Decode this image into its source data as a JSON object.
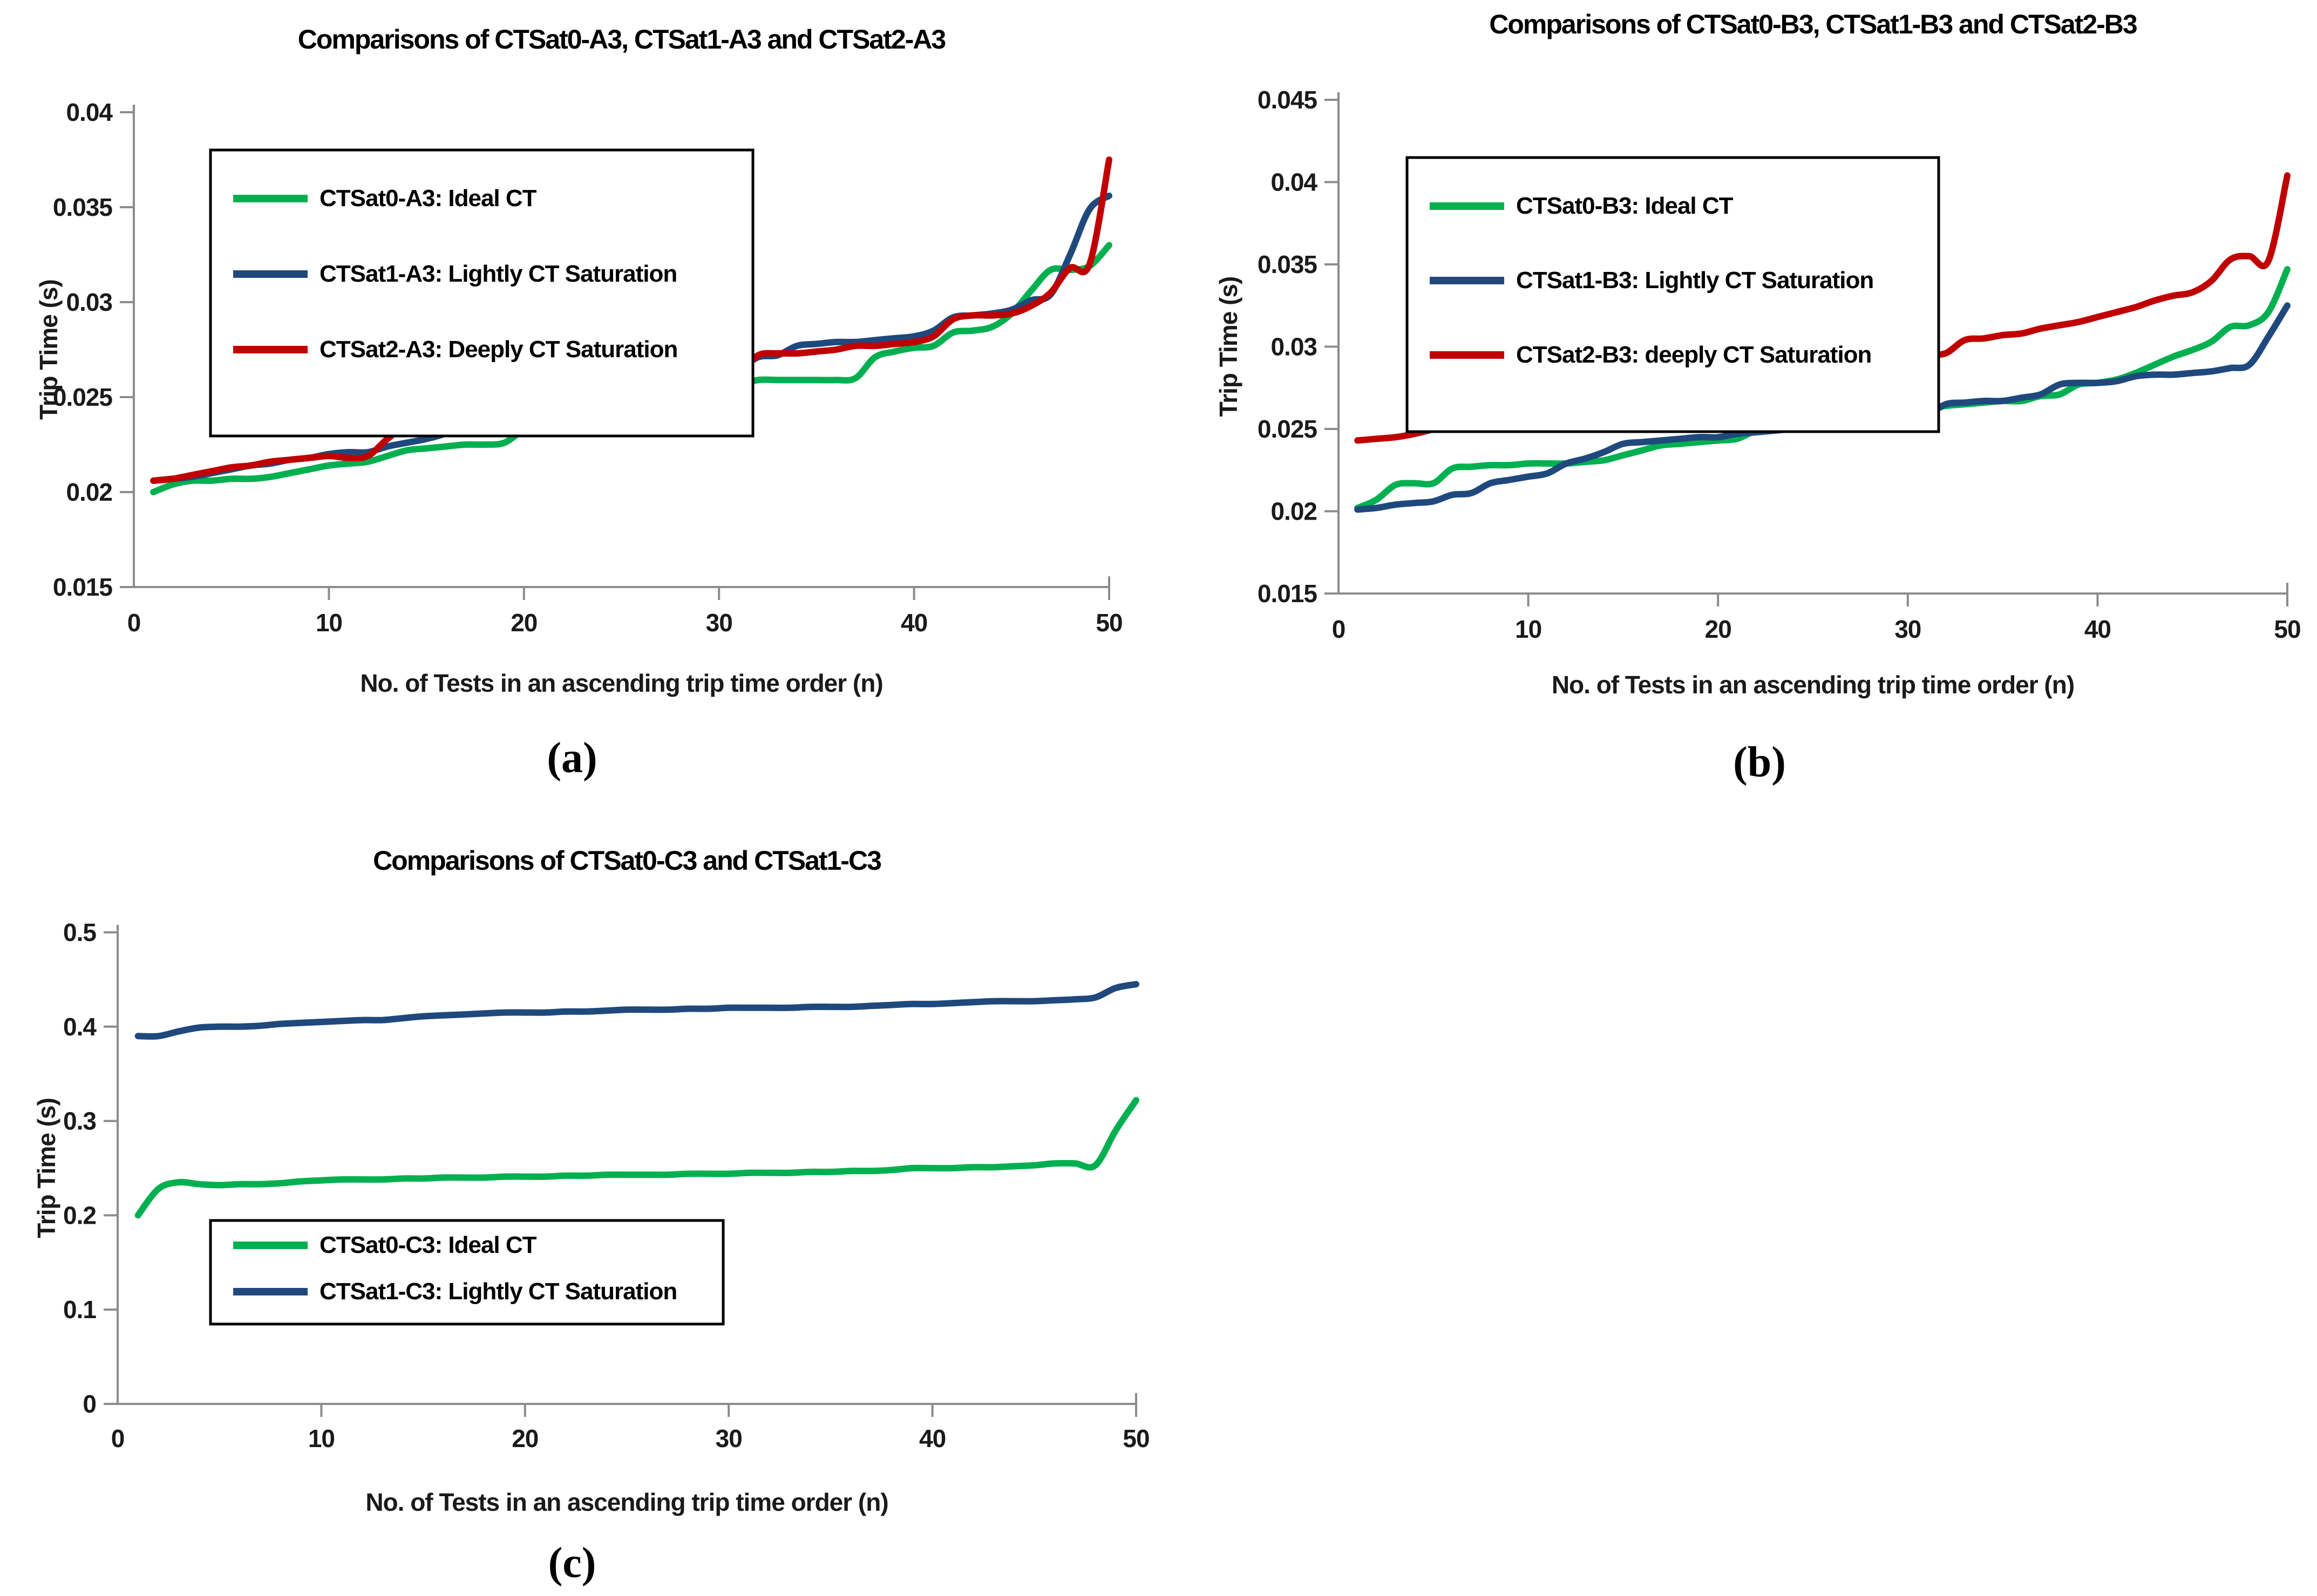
{
  "figure": {
    "captions": {
      "a": "(a)",
      "b": "(b)",
      "c": "(c)"
    }
  },
  "style": {
    "axis_color": "#8c8c8c",
    "tick_text_color": "#1a1a1a",
    "title_color": "#000000",
    "legend_border_color": "#000000",
    "ideal_green": "#00B050",
    "lightly_blue": "#1F497D",
    "deeply_red": "#C00000"
  },
  "chart_data": [
    {
      "id": "a",
      "type": "line",
      "title": "Comparisons of CTSat0-A3, CTSat1-A3 and CTSat2-A3",
      "xlabel": "No. of Tests in an ascending trip time order (n)",
      "ylabel": "Trip Time (s)",
      "xlim": [
        0,
        50
      ],
      "ylim": [
        0.015,
        0.04
      ],
      "x_range": [
        1,
        50
      ],
      "xtick_values": [
        0,
        10,
        20,
        30,
        40,
        50
      ],
      "xtick_labels": [
        "0",
        "10",
        "20",
        "30",
        "40",
        "50"
      ],
      "ytick_values": [
        0.015,
        0.02,
        0.025,
        0.03,
        0.035,
        0.04
      ],
      "ytick_labels": [
        "0.015",
        "0.02",
        "0.025",
        "0.03",
        "0.035",
        "0.04"
      ],
      "grid": false,
      "legend_position": "upper-left-inside",
      "series": [
        {
          "name": "CTSat0-A3: Ideal CT",
          "color": "#00B050",
          "values": [
            0.02,
            0.0204,
            0.0206,
            0.0206,
            0.0207,
            0.0207,
            0.0208,
            0.021,
            0.0212,
            0.0214,
            0.0215,
            0.0216,
            0.0219,
            0.0222,
            0.0223,
            0.0224,
            0.0225,
            0.0225,
            0.0226,
            0.0233,
            0.0238,
            0.0238,
            0.0239,
            0.024,
            0.0243,
            0.0249,
            0.025,
            0.0251,
            0.0251,
            0.0252,
            0.0256,
            0.0259,
            0.0259,
            0.0259,
            0.0259,
            0.0259,
            0.026,
            0.0271,
            0.0274,
            0.0276,
            0.0277,
            0.0284,
            0.0285,
            0.0287,
            0.0294,
            0.0306,
            0.0317,
            0.0317,
            0.0319,
            0.033
          ]
        },
        {
          "name": "CTSat1-A3: Lightly CT Saturation",
          "color": "#1F497D",
          "values": [
            0.0206,
            0.0207,
            0.0208,
            0.021,
            0.0212,
            0.0214,
            0.0215,
            0.0217,
            0.0218,
            0.022,
            0.0221,
            0.0221,
            0.0224,
            0.0226,
            0.0228,
            0.0231,
            0.0237,
            0.0239,
            0.024,
            0.0241,
            0.0242,
            0.0244,
            0.0246,
            0.0249,
            0.025,
            0.0251,
            0.0251,
            0.0251,
            0.0252,
            0.0258,
            0.0264,
            0.0271,
            0.0272,
            0.0277,
            0.0278,
            0.0279,
            0.0279,
            0.028,
            0.0281,
            0.0282,
            0.0285,
            0.0292,
            0.0293,
            0.0294,
            0.0296,
            0.0301,
            0.0304,
            0.0325,
            0.0349,
            0.0356
          ]
        },
        {
          "name": "CTSat2-A3: Deeply CT Saturation",
          "color": "#C00000",
          "values": [
            0.0206,
            0.0207,
            0.0209,
            0.0211,
            0.0213,
            0.0214,
            0.0216,
            0.0217,
            0.0218,
            0.0219,
            0.0218,
            0.0219,
            0.0228,
            0.0235,
            0.0236,
            0.0237,
            0.0238,
            0.024,
            0.0242,
            0.0243,
            0.0245,
            0.0246,
            0.0247,
            0.0249,
            0.025,
            0.025,
            0.0253,
            0.0258,
            0.0261,
            0.0262,
            0.0262,
            0.0272,
            0.0273,
            0.0273,
            0.0274,
            0.0275,
            0.0277,
            0.0277,
            0.0278,
            0.0279,
            0.0282,
            0.0291,
            0.0293,
            0.0293,
            0.0294,
            0.0298,
            0.0305,
            0.0318,
            0.032,
            0.0375
          ]
        }
      ]
    },
    {
      "id": "b",
      "type": "line",
      "title": "Comparisons of CTSat0-B3, CTSat1-B3 and CTSat2-B3",
      "xlabel": "No. of Tests in an ascending trip time order (n)",
      "ylabel": "Trip Time (s)",
      "xlim": [
        0,
        50
      ],
      "ylim": [
        0.015,
        0.045
      ],
      "x_range": [
        1,
        50
      ],
      "xtick_values": [
        0,
        10,
        20,
        30,
        40,
        50
      ],
      "xtick_labels": [
        "0",
        "10",
        "20",
        "30",
        "40",
        "50"
      ],
      "ytick_values": [
        0.015,
        0.02,
        0.025,
        0.03,
        0.035,
        0.04,
        0.045
      ],
      "ytick_labels": [
        "0.015",
        "0.02",
        "0.025",
        "0.03",
        "0.035",
        "0.04",
        "0.045"
      ],
      "grid": false,
      "legend_position": "upper-left-inside",
      "series": [
        {
          "name": "CTSat0-B3: Ideal CT",
          "color": "#00B050",
          "values": [
            0.0202,
            0.0207,
            0.0216,
            0.0217,
            0.0217,
            0.0226,
            0.0227,
            0.0228,
            0.0228,
            0.0229,
            0.0229,
            0.0229,
            0.023,
            0.0231,
            0.0234,
            0.0237,
            0.024,
            0.0241,
            0.0242,
            0.0243,
            0.0244,
            0.0249,
            0.0251,
            0.0254,
            0.0255,
            0.0256,
            0.0257,
            0.0259,
            0.0261,
            0.0262,
            0.0262,
            0.0264,
            0.0265,
            0.0266,
            0.0267,
            0.0267,
            0.027,
            0.0271,
            0.0277,
            0.0278,
            0.028,
            0.0284,
            0.0289,
            0.0294,
            0.0298,
            0.0303,
            0.0312,
            0.0313,
            0.0321,
            0.0347
          ]
        },
        {
          "name": "CTSat1-B3: Lightly CT Saturation",
          "color": "#1F497D",
          "values": [
            0.0201,
            0.0202,
            0.0204,
            0.0205,
            0.0206,
            0.021,
            0.0211,
            0.0217,
            0.0219,
            0.0221,
            0.0223,
            0.0229,
            0.0232,
            0.0236,
            0.0241,
            0.0242,
            0.0243,
            0.0244,
            0.0245,
            0.0245,
            0.0247,
            0.0248,
            0.0249,
            0.025,
            0.025,
            0.0251,
            0.0252,
            0.0253,
            0.0254,
            0.0255,
            0.0258,
            0.0265,
            0.0266,
            0.0267,
            0.0267,
            0.0269,
            0.0271,
            0.0277,
            0.0278,
            0.0278,
            0.0279,
            0.0282,
            0.0283,
            0.0283,
            0.0284,
            0.0285,
            0.0287,
            0.0289,
            0.0306,
            0.0325
          ]
        },
        {
          "name": "CTSat2-B3: deeply CT Saturation",
          "color": "#C00000",
          "values": [
            0.0243,
            0.0244,
            0.0245,
            0.0247,
            0.025,
            0.0255,
            0.026,
            0.026,
            0.0261,
            0.0266,
            0.0267,
            0.0268,
            0.0275,
            0.0276,
            0.0277,
            0.0277,
            0.0277,
            0.0278,
            0.0278,
            0.0278,
            0.0279,
            0.028,
            0.0282,
            0.0283,
            0.0284,
            0.0285,
            0.0293,
            0.0294,
            0.0294,
            0.0294,
            0.0295,
            0.0296,
            0.0304,
            0.0305,
            0.0307,
            0.0308,
            0.0311,
            0.0313,
            0.0315,
            0.0318,
            0.0321,
            0.0324,
            0.0328,
            0.0331,
            0.0333,
            0.034,
            0.0353,
            0.0355,
            0.0352,
            0.0404
          ]
        }
      ]
    },
    {
      "id": "c",
      "type": "line",
      "title": "Comparisons of CTSat0-C3 and CTSat1-C3",
      "xlabel": "No. of Tests in an ascending trip time order (n)",
      "ylabel": "Trip Time (s)",
      "xlim": [
        0,
        50
      ],
      "ylim": [
        0,
        0.5
      ],
      "x_range": [
        1,
        50
      ],
      "xtick_values": [
        0,
        10,
        20,
        30,
        40,
        50
      ],
      "xtick_labels": [
        "0",
        "10",
        "20",
        "30",
        "40",
        "50"
      ],
      "ytick_values": [
        0,
        0.1,
        0.2,
        0.3,
        0.4,
        0.5
      ],
      "ytick_labels": [
        "0",
        "0.1",
        "0.2",
        "0.3",
        "0.4",
        "0.5"
      ],
      "grid": false,
      "legend_position": "lower-left-inside",
      "series": [
        {
          "name": "CTSat0-C3: Ideal CT",
          "color": "#00B050",
          "values": [
            0.2,
            0.228,
            0.235,
            0.233,
            0.232,
            0.233,
            0.233,
            0.234,
            0.236,
            0.237,
            0.238,
            0.238,
            0.238,
            0.239,
            0.239,
            0.24,
            0.24,
            0.24,
            0.241,
            0.241,
            0.241,
            0.242,
            0.242,
            0.243,
            0.243,
            0.243,
            0.243,
            0.244,
            0.244,
            0.244,
            0.245,
            0.245,
            0.245,
            0.246,
            0.246,
            0.247,
            0.247,
            0.248,
            0.25,
            0.25,
            0.25,
            0.251,
            0.251,
            0.252,
            0.253,
            0.255,
            0.255,
            0.253,
            0.29,
            0.322
          ]
        },
        {
          "name": "CTSat1-C3: Lightly CT Saturation",
          "color": "#1F497D",
          "values": [
            0.39,
            0.39,
            0.395,
            0.399,
            0.4,
            0.4,
            0.401,
            0.403,
            0.404,
            0.405,
            0.406,
            0.407,
            0.407,
            0.409,
            0.411,
            0.412,
            0.413,
            0.414,
            0.415,
            0.415,
            0.415,
            0.416,
            0.416,
            0.417,
            0.418,
            0.418,
            0.418,
            0.419,
            0.419,
            0.42,
            0.42,
            0.42,
            0.42,
            0.421,
            0.421,
            0.421,
            0.422,
            0.423,
            0.424,
            0.424,
            0.425,
            0.426,
            0.427,
            0.427,
            0.427,
            0.428,
            0.429,
            0.431,
            0.441,
            0.445
          ]
        }
      ]
    }
  ]
}
